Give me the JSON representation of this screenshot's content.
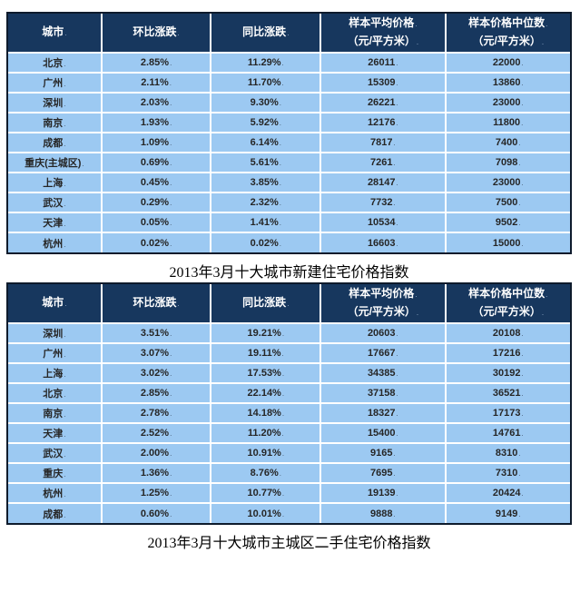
{
  "page": {
    "background": "#FFFFFF"
  },
  "colors": {
    "header_bg": "#17375E",
    "header_text": "#FFFFFF",
    "row_bg": "#9CC9F2",
    "cell_text": "#262626",
    "grid_line": "#FFFFFF",
    "outer_border": "#0E1B2C",
    "caption_text": "#000000"
  },
  "end_mark": ".",
  "tables": [
    {
      "id": "new-home-price-index",
      "caption": "2013年3月十大城市新建住宅价格指数",
      "headers": [
        {
          "line1": "城市",
          "line2": ""
        },
        {
          "line1": "环比涨跌",
          "line2": ""
        },
        {
          "line1": "同比涨跌",
          "line2": ""
        },
        {
          "line1": "样本平均价格",
          "line2": "（元/平方米）"
        },
        {
          "line1": "样本价格中位数",
          "line2": "（元/平方米）"
        }
      ],
      "rows": [
        [
          "北京",
          "2.85%",
          "11.29%",
          "26011",
          "22000"
        ],
        [
          "广州",
          "2.11%",
          "11.70%",
          "15309",
          "13860"
        ],
        [
          "深圳",
          "2.03%",
          "9.30%",
          "26221",
          "23000"
        ],
        [
          "南京",
          "1.93%",
          "5.92%",
          "12176",
          "11800"
        ],
        [
          "成都",
          "1.09%",
          "6.14%",
          "7817",
          "7400"
        ],
        [
          "重庆(主城区)",
          "0.69%",
          "5.61%",
          "7261",
          "7098"
        ],
        [
          "上海",
          "0.45%",
          "3.85%",
          "28147",
          "23000"
        ],
        [
          "武汉",
          "0.29%",
          "2.32%",
          "7732",
          "7500"
        ],
        [
          "天津",
          "0.05%",
          "1.41%",
          "10534",
          "9502"
        ],
        [
          "杭州",
          "0.02%",
          "0.02%",
          "16603",
          "15000"
        ]
      ]
    },
    {
      "id": "second-hand-price-index",
      "caption": "2013年3月十大城市主城区二手住宅价格指数",
      "headers": [
        {
          "line1": "城市",
          "line2": ""
        },
        {
          "line1": "环比涨跌",
          "line2": ""
        },
        {
          "line1": "同比涨跌",
          "line2": ""
        },
        {
          "line1": "样本平均价格",
          "line2": "（元/平方米）"
        },
        {
          "line1": "样本价格中位数",
          "line2": "（元/平方米）"
        }
      ],
      "rows": [
        [
          "深圳",
          "3.51%",
          "19.21%",
          "20603",
          "20108"
        ],
        [
          "广州",
          "3.07%",
          "19.11%",
          "17667",
          "17216"
        ],
        [
          "上海",
          "3.02%",
          "17.53%",
          "34385",
          "30192"
        ],
        [
          "北京",
          "2.85%",
          "22.14%",
          "37158",
          "36521"
        ],
        [
          "南京",
          "2.78%",
          "14.18%",
          "18327",
          "17173"
        ],
        [
          "天津",
          "2.52%",
          "11.20%",
          "15400",
          "14761"
        ],
        [
          "武汉",
          "2.00%",
          "10.91%",
          "9165",
          "8310"
        ],
        [
          "重庆",
          "1.36%",
          "8.76%",
          "7695",
          "7310"
        ],
        [
          "杭州",
          "1.25%",
          "10.77%",
          "19139",
          "20424"
        ],
        [
          "成都",
          "0.60%",
          "10.01%",
          "9888",
          "9149"
        ]
      ]
    }
  ]
}
